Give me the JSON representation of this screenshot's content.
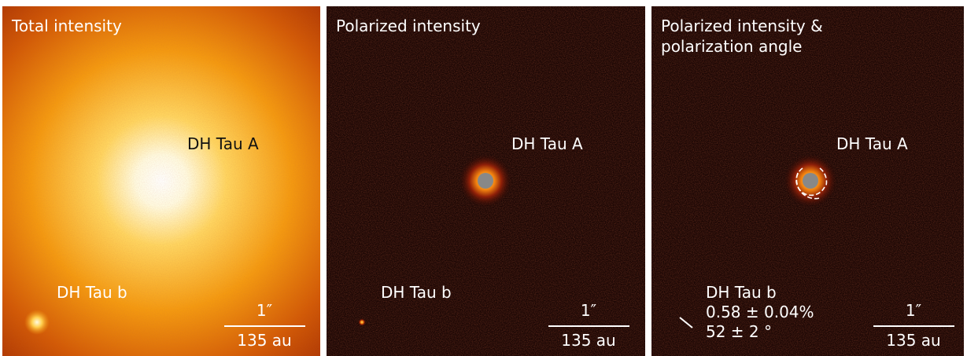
{
  "panels": [
    {
      "title": [
        "Total intensity"
      ],
      "star_label": "DH Tau A",
      "companion_label": [
        "DH Tau b"
      ],
      "scale_top": "1″",
      "scale_bottom": "135 au"
    },
    {
      "title": [
        "Polarized intensity"
      ],
      "star_label": "DH Tau A",
      "companion_label": [
        "DH Tau b"
      ],
      "scale_top": "1″",
      "scale_bottom": "135 au"
    },
    {
      "title": [
        "Polarized intensity &",
        "polarization angle"
      ],
      "star_label": "DH Tau A",
      "companion_label": [
        "DH Tau b",
        "0.58 ± 0.04%",
        "52 ± 2 °"
      ],
      "scale_top": "1″",
      "scale_bottom": "135 au"
    }
  ]
}
